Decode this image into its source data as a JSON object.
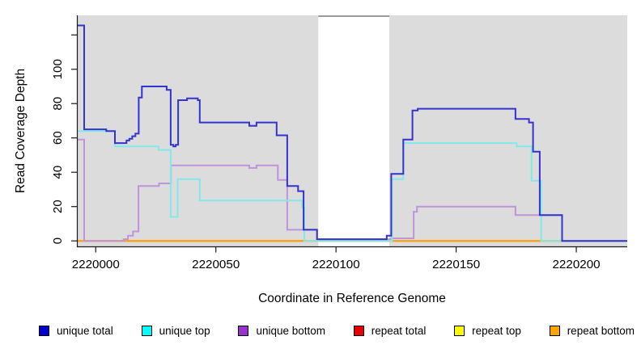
{
  "chart_data": {
    "type": "line",
    "subtype": "step-coverage",
    "title": "",
    "xlabel": "Coordinate in Reference Genome",
    "ylabel": "Read Coverage Depth",
    "xlim": [
      2219992.5,
      2220221.2
    ],
    "ylim": [
      -3.2,
      131.4
    ],
    "x_ticks": [
      {
        "v": 2220000,
        "label": "2220000"
      },
      {
        "v": 2220050,
        "label": "2220050"
      },
      {
        "v": 2220100,
        "label": "2220100"
      },
      {
        "v": 2220150,
        "label": "2220150"
      },
      {
        "v": 2220200,
        "label": "2220200"
      }
    ],
    "y_ticks": [
      {
        "v": 0,
        "label": "0"
      },
      {
        "v": 20,
        "label": "20"
      },
      {
        "v": 40,
        "label": "40"
      },
      {
        "v": 60,
        "label": "60"
      },
      {
        "v": 80,
        "label": "80"
      },
      {
        "v": 100,
        "label": "100"
      },
      {
        "v": 120,
        "label": ""
      }
    ],
    "plot_bg": "#dcdcdc",
    "masked_region": {
      "x_start": 2220092.6,
      "x_end": 2220122.2,
      "fill": "#ffffff",
      "top_border": "#9a9a9a"
    },
    "grid": false,
    "legend_position": "bottom",
    "series": [
      {
        "name": "repeat total",
        "color": "#e00000",
        "points": [
          [
            2219992.5,
            0
          ]
        ]
      },
      {
        "name": "repeat top",
        "color": "#ffff00",
        "points": [
          [
            2219992.5,
            0
          ]
        ]
      },
      {
        "name": "repeat bottom",
        "color": "#ffa018",
        "points": [
          [
            2219992.5,
            0
          ]
        ]
      },
      {
        "name": "unique bottom",
        "color": "#bf94da",
        "points": [
          [
            2219992.5,
            59
          ],
          [
            2219995.2,
            0
          ],
          [
            2220011.6,
            1
          ],
          [
            2220013.4,
            3
          ],
          [
            2220015.5,
            5.5
          ],
          [
            2220017.8,
            32
          ],
          [
            2220026.3,
            33.5
          ],
          [
            2220031.3,
            44
          ],
          [
            2220063.9,
            42.5
          ],
          [
            2220066.9,
            44
          ],
          [
            2220075.8,
            35.5
          ],
          [
            2220079.7,
            6.5
          ],
          [
            2220092.1,
            1
          ],
          [
            2220123.0,
            1.5
          ],
          [
            2220132.3,
            17
          ],
          [
            2220133.7,
            20
          ],
          [
            2220174.7,
            15
          ],
          [
            2220194.1,
            0
          ]
        ]
      },
      {
        "name": "unique top",
        "color": "#82e9e9",
        "points": [
          [
            2219992.5,
            64
          ],
          [
            2220008.0,
            55
          ],
          [
            2220026.2,
            53
          ],
          [
            2220031.2,
            14
          ],
          [
            2220034.1,
            36
          ],
          [
            2220043.3,
            23.5
          ],
          [
            2220085.9,
            19.5
          ],
          [
            2220086.8,
            0
          ],
          [
            2220123.3,
            36
          ],
          [
            2220128.0,
            57
          ],
          [
            2220175.2,
            55
          ],
          [
            2220181.4,
            35
          ],
          [
            2220185.4,
            0
          ]
        ]
      },
      {
        "name": "unique total",
        "color": "#3333cf",
        "points": [
          [
            2219992.5,
            125.5
          ],
          [
            2219995.2,
            65
          ],
          [
            2220004.4,
            64
          ],
          [
            2220008.0,
            57
          ],
          [
            2220012.8,
            58.5
          ],
          [
            2220014.0,
            59.5
          ],
          [
            2220015.2,
            61
          ],
          [
            2220016.5,
            62.5
          ],
          [
            2220017.9,
            83.5
          ],
          [
            2220019.2,
            90
          ],
          [
            2220029.5,
            88
          ],
          [
            2220031.2,
            56
          ],
          [
            2220032.3,
            55
          ],
          [
            2220033.3,
            56
          ],
          [
            2220034.3,
            82
          ],
          [
            2220038.0,
            83
          ],
          [
            2220042.5,
            82
          ],
          [
            2220043.3,
            69
          ],
          [
            2220063.9,
            67
          ],
          [
            2220066.9,
            69
          ],
          [
            2220075.3,
            61.5
          ],
          [
            2220079.7,
            32
          ],
          [
            2220084.2,
            29
          ],
          [
            2220086.5,
            6.5
          ],
          [
            2220092.1,
            1
          ],
          [
            2220121.1,
            3
          ],
          [
            2220123.0,
            39
          ],
          [
            2220128.0,
            59
          ],
          [
            2220131.8,
            76
          ],
          [
            2220134.0,
            77
          ],
          [
            2220174.7,
            71
          ],
          [
            2220180.3,
            69
          ],
          [
            2220182.0,
            52
          ],
          [
            2220184.8,
            15
          ],
          [
            2220194.1,
            0
          ]
        ]
      }
    ]
  },
  "legend": {
    "items": [
      {
        "label": "unique total",
        "color": "#0000cd"
      },
      {
        "label": "unique top",
        "color": "#00ffff"
      },
      {
        "label": "unique bottom",
        "color": "#9932cc"
      },
      {
        "label": "repeat total",
        "color": "#e60000"
      },
      {
        "label": "repeat top",
        "color": "#ffff00"
      },
      {
        "label": "repeat bottom",
        "color": "#ffa500"
      }
    ]
  }
}
